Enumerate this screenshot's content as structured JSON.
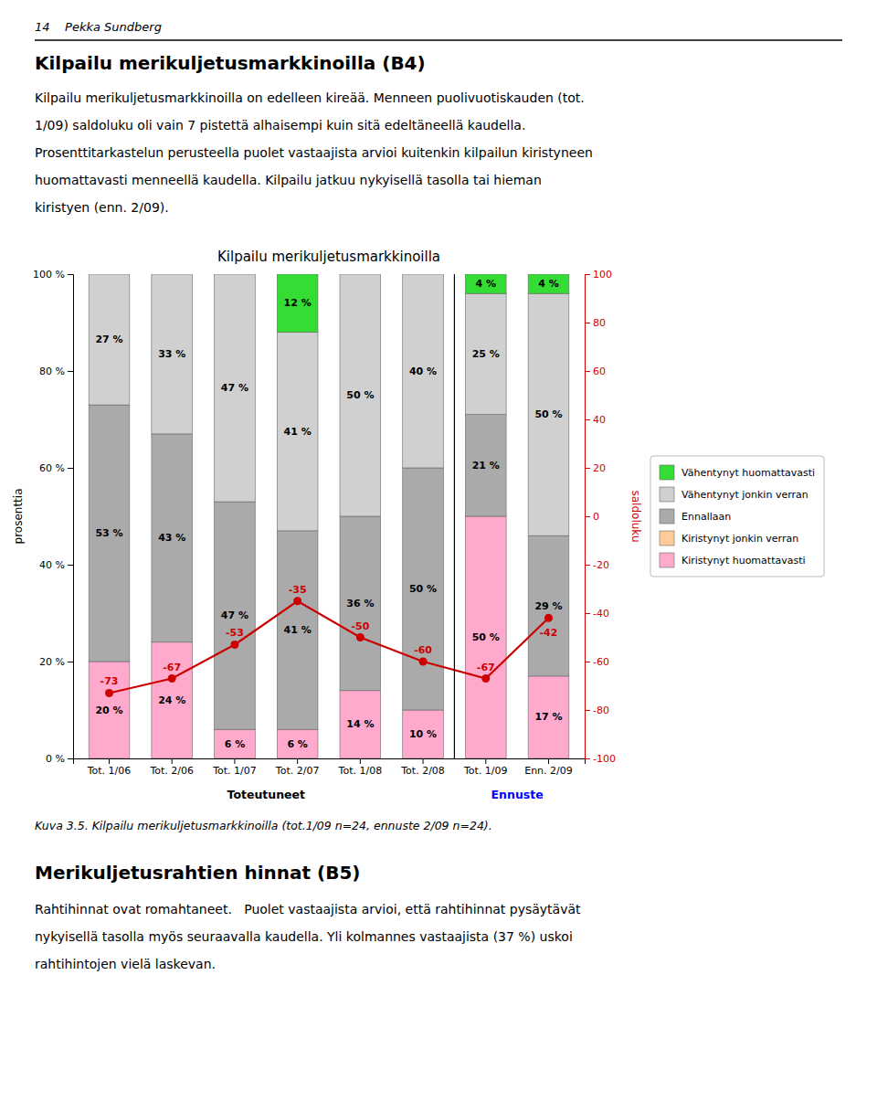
{
  "chart_data": {
    "type": "bar",
    "stacked": true,
    "title": "Kilpailu merikuljetusmarkkinoilla",
    "ylabel": "prosenttia",
    "y2label": "saldoluku",
    "categories": [
      "Tot. 1/06",
      "Tot. 2/06",
      "Tot. 1/07",
      "Tot. 2/07",
      "Tot. 1/08",
      "Tot. 2/08",
      "Tot. 1/09",
      "Enn. 2/09"
    ],
    "series": [
      {
        "name": "Kiristynyt huomattavasti",
        "color": "#ffaacc",
        "values": [
          20,
          24,
          6,
          6,
          14,
          10,
          50,
          17
        ],
        "value_labels": [
          "20 %",
          "24 %",
          "6 %",
          "6 %",
          "14 %",
          "10 %",
          "50 %",
          "17 %"
        ]
      },
      {
        "name": "Kiristynyt jonkin verran",
        "color": "#ffcc99",
        "values": [
          0,
          0,
          0,
          0,
          0,
          0,
          0,
          0
        ]
      },
      {
        "name": "Ennallaan",
        "color": "#aaaaaa",
        "values": [
          53,
          43,
          47,
          41,
          36,
          50,
          21,
          29
        ],
        "value_labels": [
          "53 %",
          "43 %",
          "47 %",
          "41 %",
          "36 %",
          "50 %",
          "21 %",
          "29 %"
        ]
      },
      {
        "name": "Vähentynyt jonkin verran",
        "color": "#d0d0d0",
        "values": [
          27,
          33,
          47,
          41,
          50,
          40,
          25,
          50
        ],
        "value_labels": [
          "27 %",
          "33 %",
          "47 %",
          "41 %",
          "50 %",
          "40 %",
          "25 %",
          "50 %"
        ]
      },
      {
        "name": "Vähentynyt huomattavasti",
        "color": "#33dd33",
        "values": [
          0,
          0,
          0,
          12,
          0,
          0,
          4,
          4
        ],
        "value_labels": [
          null,
          null,
          null,
          "12 %",
          null,
          null,
          "4 %",
          "4 %"
        ]
      },
      {
        "type": "line",
        "axis": "y2",
        "color": "#cc0000",
        "marker": "circle",
        "values": [
          -73,
          -67,
          -53,
          -35,
          -50,
          -60,
          -67,
          -42
        ]
      }
    ],
    "ylim": [
      0,
      100
    ],
    "yticks": [
      {
        "value": 0,
        "label": "0 %"
      },
      {
        "value": 20,
        "label": "20 %"
      },
      {
        "value": 40,
        "label": "40 %"
      },
      {
        "value": 60,
        "label": "60 %"
      },
      {
        "value": 80,
        "label": "80 %"
      },
      {
        "value": 100,
        "label": "100 %"
      }
    ],
    "y2lim": [
      -100,
      100
    ],
    "y2ticks": [
      -100,
      -80,
      -60,
      -40,
      -20,
      0,
      20,
      40,
      60,
      80,
      100
    ],
    "grid": false,
    "legend": "right",
    "data_labels": true,
    "annotations": [
      {
        "text": "Toteutuneet",
        "color": "black",
        "from": "Tot. 1/06",
        "to": "Tot. 2/08"
      },
      {
        "text": "Ennuste",
        "color": "blue",
        "from": "Tot. 1/09",
        "to": "Enn. 2/09"
      }
    ]
  },
  "page": {
    "header": "14    Pekka Sundberg",
    "title": "Kilpailu merikuljetusmarkkinoilla (B4)",
    "body": [
      "Kilpailu merikuljetusmarkkinoilla on edelleen kireää. Menneen puolivuotiskauden (tot.",
      "1/09) saldoluku oli vain 7 pistettä alhaisempi kuin sitä edeltäneellä kaudella.",
      "Prosenttitarkastelun perusteella puolet vastaajista arvioi kuitenkin kilpailun kiristyneen",
      "huomattavasti menneellä kaudella. Kilpailu jatkuu nykyisellä tasolla tai hieman",
      "kiristyen (enn. 2/09)."
    ],
    "caption": "Kuva 3.5. Kilpailu merikuljetusmarkkinoilla (tot.1/09 n=24, ennuste 2/09 n=24).",
    "bottom_title": "Merikuljetusrahtien hinnat (B5)",
    "bottom_body": [
      "Rahtihinnat ovat romahtaneet.   Puolet vastaajista arvioi, että rahtihinnat pysäytävät",
      "nykyisellä tasolla myös seuraavalla kaudella. Yli kolmannes vastaajista (37 %) uskoi",
      "rahtihintojen vielä laskevan."
    ]
  }
}
